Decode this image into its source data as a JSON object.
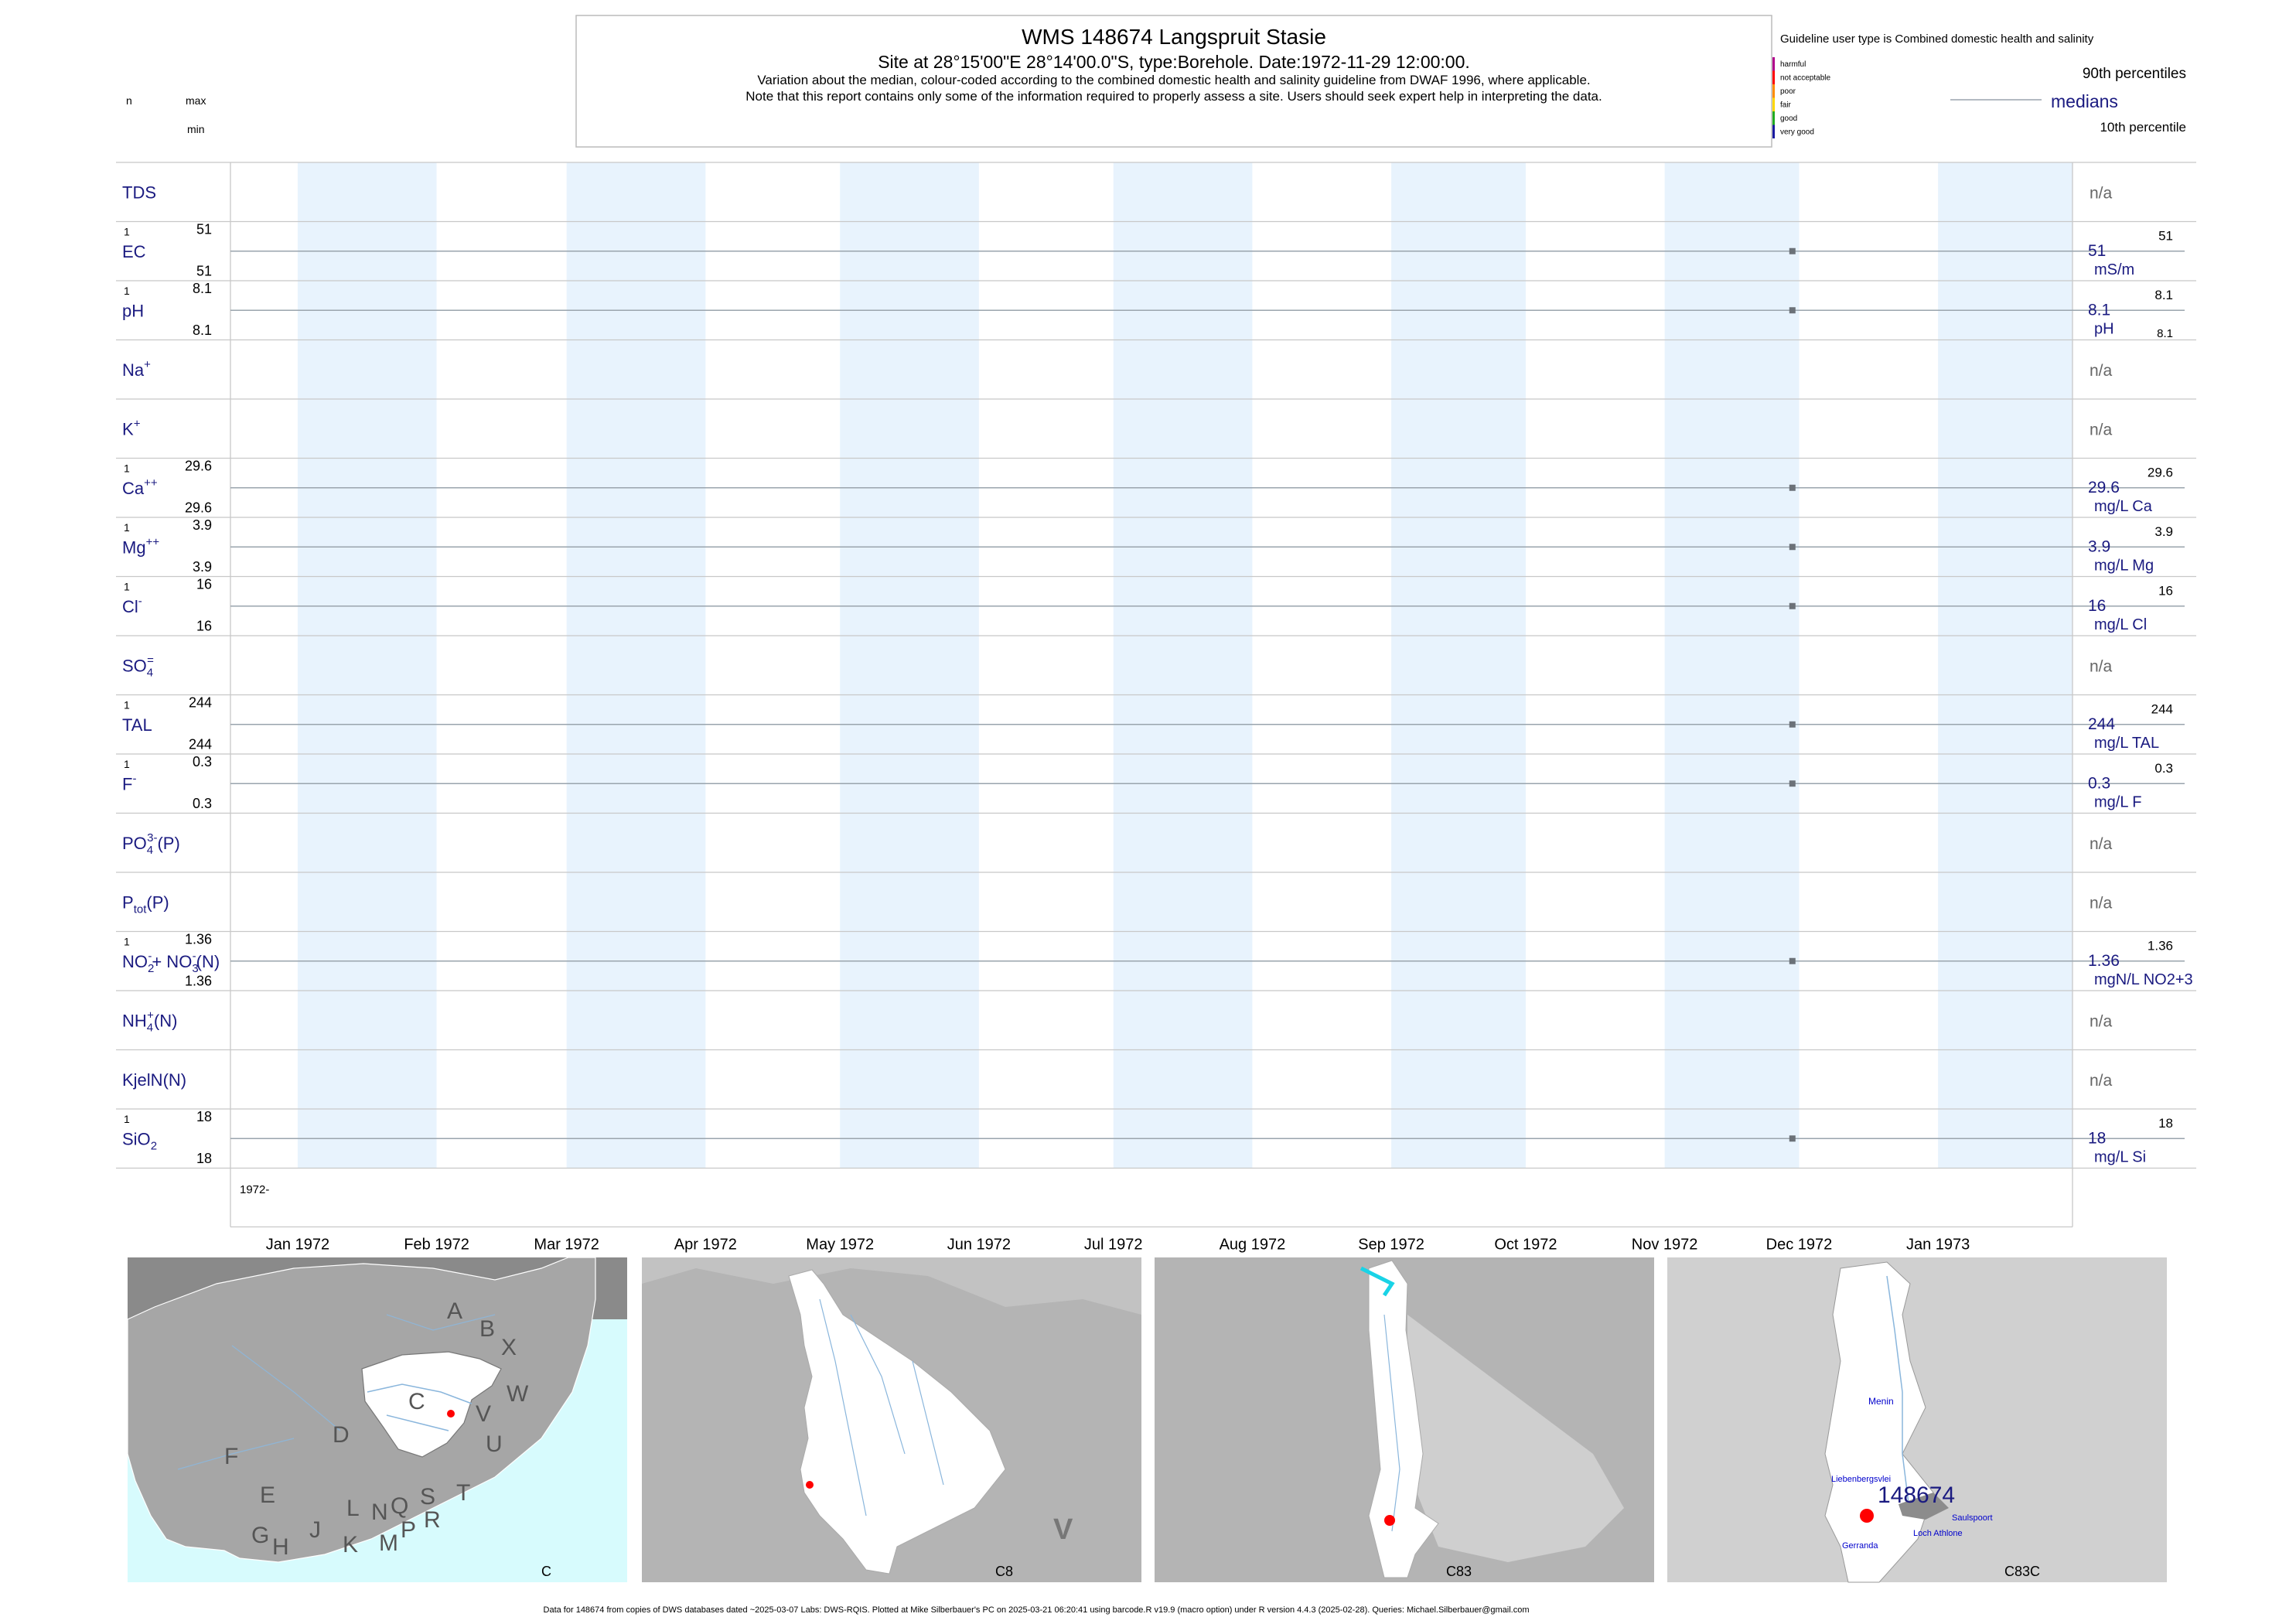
{
  "header": {
    "title": "WMS 148674  Langspruit Stasie",
    "site_line": "Site at 28°15'00\"E 28°14'00.0\"S, type:Borehole. Date:1972-11-29 12:00:00.",
    "note1": "Variation about the median,  colour-coded according to the combined domestic health and salinity guideline from DWAF 1996, where applicable.",
    "note2": "Note that this report contains only some of the information required to properly assess a site. Users should seek expert help in interpreting the data."
  },
  "legend": {
    "guideline_title": "Guideline user type is Combined domestic health and salinity",
    "classes": [
      {
        "label": "harmful",
        "color": "#b0008a"
      },
      {
        "label": "not acceptable",
        "color": "#ff0000"
      },
      {
        "label": "poor",
        "color": "#ff8c00"
      },
      {
        "label": "fair",
        "color": "#ffd700"
      },
      {
        "label": "good",
        "color": "#22aa22"
      },
      {
        "label": "very good",
        "color": "#1a1aa0"
      }
    ],
    "p90": "90th percentiles",
    "medians": "medians",
    "p10": "10th percentile"
  },
  "left_header": {
    "n": "n",
    "max": "max",
    "min": "min"
  },
  "chart_data": {
    "type": "scatter",
    "x_start_label": "1972-",
    "x_ticks": [
      "Jan 1972",
      "Feb 1972",
      "Mar 1972",
      "Apr 1972",
      "May 1972",
      "Jun 1972",
      "Jul 1972",
      "Aug 1972",
      "Sep 1972",
      "Oct 1972",
      "Nov 1972",
      "Dec 1972",
      "Jan 1973"
    ],
    "sample_date": "1972-11-29",
    "colors": {
      "month_band": "#e8f3fd",
      "median_line": "#9aa4ad",
      "label": "#1a1a80",
      "na": "#666666"
    },
    "rows": [
      {
        "name": "TDS",
        "base": "TDS"
      },
      {
        "name": "EC",
        "base": "EC",
        "n": "1",
        "max": "51",
        "min": "51",
        "value": 51,
        "median": "51",
        "unit": "mS/m",
        "p90": "51"
      },
      {
        "name": "pH",
        "base": "pH",
        "n": "1",
        "max": "8.1",
        "min": "8.1",
        "value": 8.1,
        "median": "8.1",
        "unit": "pH",
        "p90": "8.1",
        "p10": "8.1"
      },
      {
        "name": "Na+",
        "base": "Na",
        "sup": "+"
      },
      {
        "name": "K+",
        "base": "K",
        "sup": "+"
      },
      {
        "name": "Ca++",
        "base": "Ca",
        "sup": "++",
        "n": "1",
        "max": "29.6",
        "min": "29.6",
        "value": 29.6,
        "median": "29.6",
        "unit": "mg/L Ca",
        "p90": "29.6"
      },
      {
        "name": "Mg++",
        "base": "Mg",
        "sup": "++",
        "n": "1",
        "max": "3.9",
        "min": "3.9",
        "value": 3.9,
        "median": "3.9",
        "unit": "mg/L Mg",
        "p90": "3.9"
      },
      {
        "name": "Cl-",
        "base": "Cl",
        "sup": "-",
        "n": "1",
        "max": "16",
        "min": "16",
        "value": 16,
        "median": "16",
        "unit": "mg/L Cl",
        "p90": "16"
      },
      {
        "name": "SO4=",
        "base": "SO",
        "sub": "4",
        "sup": "=",
        "post": ""
      },
      {
        "name": "TAL",
        "base": "TAL",
        "n": "1",
        "max": "244",
        "min": "244",
        "value": 244,
        "median": "244",
        "unit": "mg/L TAL",
        "p90": "244"
      },
      {
        "name": "F-",
        "base": "F",
        "sup": "-",
        "n": "1",
        "max": "0.3",
        "min": "0.3",
        "value": 0.3,
        "median": "0.3",
        "unit": "mg/L F",
        "p90": "0.3"
      },
      {
        "name": "PO4(P)",
        "base": "PO",
        "sub": "4",
        "sup": "3-",
        "post": "(P)"
      },
      {
        "name": "Ptot(P)",
        "base": "P",
        "sub": "tot",
        "post": "(P)"
      },
      {
        "name": "NO2+NO3(N)",
        "base": "NO",
        "sub": "2",
        "sup": "-",
        "post": "+ NO",
        "sub2": "3",
        "sup2": "-",
        "post2": "(N)",
        "n": "1",
        "max": "1.36",
        "min": "1.36",
        "value": 1.36,
        "median": "1.36",
        "unit": "mgN/L NO2+3",
        "p90": "1.36"
      },
      {
        "name": "NH4(N)",
        "base": "NH",
        "sub": "4",
        "sup": "+",
        "post": "(N)"
      },
      {
        "name": "KjelN(N)",
        "base": "KjelN(N)"
      },
      {
        "name": "SiO2",
        "base": "SiO",
        "sub": "2",
        "n": "1",
        "max": "18",
        "min": "18",
        "value": 18,
        "median": "18",
        "unit": "mg/L Si",
        "p90": "18"
      }
    ],
    "na_label": "n/a"
  },
  "maps": [
    {
      "name": "C",
      "labels": [
        "A",
        "B",
        "X",
        "W",
        "C",
        "V",
        "U",
        "D",
        "T",
        "F",
        "E",
        "S",
        "R",
        "Q",
        "N",
        "L",
        "J",
        "K",
        "M",
        "P",
        "G",
        "H"
      ]
    },
    {
      "name": "C8",
      "labels": [
        "V"
      ]
    },
    {
      "name": "C83",
      "labels": []
    },
    {
      "name": "C83C",
      "station": "148674",
      "places": [
        "Menin",
        "Liebenbergsvlei",
        "Saulspoort",
        "Loch Athlone",
        "Gerranda"
      ]
    }
  ],
  "footer": "Data for 148674 from copies of DWS databases dated ~2025-03-07 Labs: DWS-RQIS. Plotted at Mike Silberbauer's PC on 2025-03-21 06:20:41 using barcode.R v19.9 (macro option) under R version 4.4.3 (2025-02-28). Queries: Michael.Silberbauer@gmail.com"
}
